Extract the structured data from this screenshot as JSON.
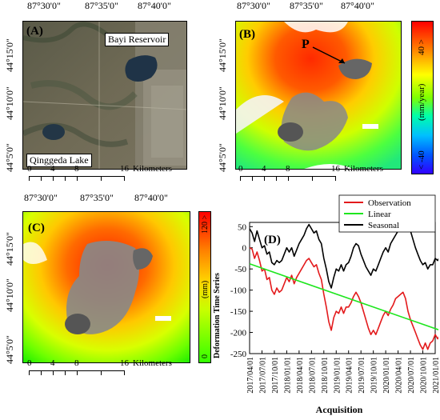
{
  "top_lon_ticks": [
    "87°30'0\"",
    "87°35'0\"",
    "87°40'0\""
  ],
  "mid_lon_ticks": [
    "87°30'0\"",
    "87°35'0\"",
    "87°40'0\""
  ],
  "lat_ticks": [
    "44°15'0\"",
    "44°10'0\"",
    "44°5'0\""
  ],
  "panelA": {
    "label": "(A)",
    "place1": "Bayi Reservoir",
    "place2": "Qinggeda Lake"
  },
  "panelB": {
    "label": "(B)",
    "marker": "P",
    "cbar_top": "40 >",
    "cbar_unit": "(mm/year)",
    "cbar_bottom": "< -40"
  },
  "panelC": {
    "label": "(C)",
    "cbar_top": "120 >",
    "cbar_unit": "(mm)",
    "cbar_title": "Deformation Time Series",
    "cbar_bottom": "0"
  },
  "scalebar": {
    "ticks": [
      "0",
      "4",
      "8",
      "16"
    ],
    "unit": "Kilometers"
  },
  "chart_data": {
    "type": "line",
    "panel_label": "(D)",
    "xlabel": "Acquisition",
    "ylabel": "",
    "ylim": [
      -250,
      60
    ],
    "yticks": [
      50,
      0,
      -50,
      -100,
      -150,
      -200,
      -250
    ],
    "xticks": [
      "2017/04/01",
      "2017/07/01",
      "2017/10/01",
      "2018/01/01",
      "2018/04/01",
      "2018/07/01",
      "2018/10/01",
      "2019/01/01",
      "2019/04/01",
      "2019/07/01",
      "2019/10/01",
      "2020/01/01",
      "2020/04/01",
      "2020/07/01",
      "2020/10/01",
      "2021/01/01"
    ],
    "legend_position": "top-right",
    "series": [
      {
        "name": "Observation",
        "color": "#e31a1c",
        "x": [
          0.0,
          0.2,
          0.4,
          0.6,
          0.8,
          1.0,
          1.2,
          1.4,
          1.6,
          1.8,
          2.0,
          2.2,
          2.4,
          2.6,
          2.8,
          3.0,
          3.2,
          3.4,
          3.6,
          3.8,
          4.0,
          4.2,
          4.4,
          4.6,
          4.8,
          5.0,
          5.2,
          5.4,
          5.6,
          5.8,
          6.0,
          6.2,
          6.4,
          6.6,
          6.8,
          7.0,
          7.2,
          7.4,
          7.6,
          7.8,
          8.0,
          8.2,
          8.4,
          8.6,
          8.8,
          9.0,
          9.2,
          9.4,
          9.6,
          9.8,
          10.0,
          10.2,
          10.4,
          10.6,
          10.8,
          11.0,
          11.2,
          11.4,
          11.6,
          11.8,
          12.0,
          12.2,
          12.4,
          12.6,
          12.8,
          13.0,
          13.2,
          13.4,
          13.6,
          13.8,
          14.0,
          14.2,
          14.4,
          14.6,
          14.8,
          15.0,
          15.2,
          15.4,
          15.6,
          15.8
        ],
        "y": [
          0,
          -3,
          -25,
          -10,
          -30,
          -55,
          -50,
          -75,
          -70,
          -100,
          -110,
          -95,
          -105,
          -100,
          -85,
          -70,
          -80,
          -65,
          -85,
          -70,
          -60,
          -50,
          -40,
          -30,
          -25,
          -35,
          -45,
          -40,
          -60,
          -75,
          -110,
          -140,
          -175,
          -195,
          -165,
          -150,
          -155,
          -140,
          -155,
          -140,
          -140,
          -130,
          -115,
          -105,
          -115,
          -130,
          -150,
          -170,
          -190,
          -205,
          -195,
          -205,
          -190,
          -175,
          -160,
          -150,
          -160,
          -145,
          -135,
          -120,
          -115,
          -110,
          -105,
          -120,
          -150,
          -170,
          -185,
          -200,
          -215,
          -230,
          -240,
          -225,
          -240,
          -225,
          -220,
          -205,
          -215,
          -205,
          -200,
          -195
        ]
      },
      {
        "name": "Linear",
        "color": "#1ee61e",
        "x": [
          0,
          15.6
        ],
        "y": [
          -38,
          -197
        ]
      },
      {
        "name": "Seasonal",
        "color": "#000000",
        "x": [
          0.0,
          0.2,
          0.4,
          0.6,
          0.8,
          1.0,
          1.2,
          1.4,
          1.6,
          1.8,
          2.0,
          2.2,
          2.4,
          2.6,
          2.8,
          3.0,
          3.2,
          3.4,
          3.6,
          3.8,
          4.0,
          4.2,
          4.4,
          4.6,
          4.8,
          5.0,
          5.2,
          5.4,
          5.6,
          5.8,
          6.0,
          6.2,
          6.4,
          6.6,
          6.8,
          7.0,
          7.2,
          7.4,
          7.6,
          7.8,
          8.0,
          8.2,
          8.4,
          8.6,
          8.8,
          9.0,
          9.2,
          9.4,
          9.6,
          9.8,
          10.0,
          10.2,
          10.4,
          10.6,
          10.8,
          11.0,
          11.2,
          11.4,
          11.6,
          11.8,
          12.0,
          12.2,
          12.4,
          12.6,
          12.8,
          13.0,
          13.2,
          13.4,
          13.6,
          13.8,
          14.0,
          14.2,
          14.4,
          14.6,
          14.8,
          15.0,
          15.2,
          15.4,
          15.6,
          15.8
        ],
        "y": [
          45,
          35,
          15,
          40,
          20,
          0,
          5,
          -15,
          -10,
          -35,
          -40,
          -30,
          -35,
          -30,
          -15,
          0,
          -10,
          0,
          -20,
          -5,
          10,
          20,
          30,
          45,
          55,
          45,
          35,
          40,
          20,
          10,
          -25,
          -50,
          -80,
          -95,
          -70,
          -50,
          -55,
          -40,
          -55,
          -40,
          -35,
          -20,
          0,
          10,
          5,
          -15,
          -30,
          -45,
          -55,
          -65,
          -50,
          -55,
          -40,
          -25,
          -10,
          0,
          -10,
          10,
          20,
          30,
          40,
          45,
          55,
          60,
          50,
          40,
          20,
          0,
          -15,
          -30,
          -40,
          -35,
          -50,
          -40,
          -40,
          -25,
          -30,
          -20,
          -20,
          -10
        ]
      }
    ]
  }
}
